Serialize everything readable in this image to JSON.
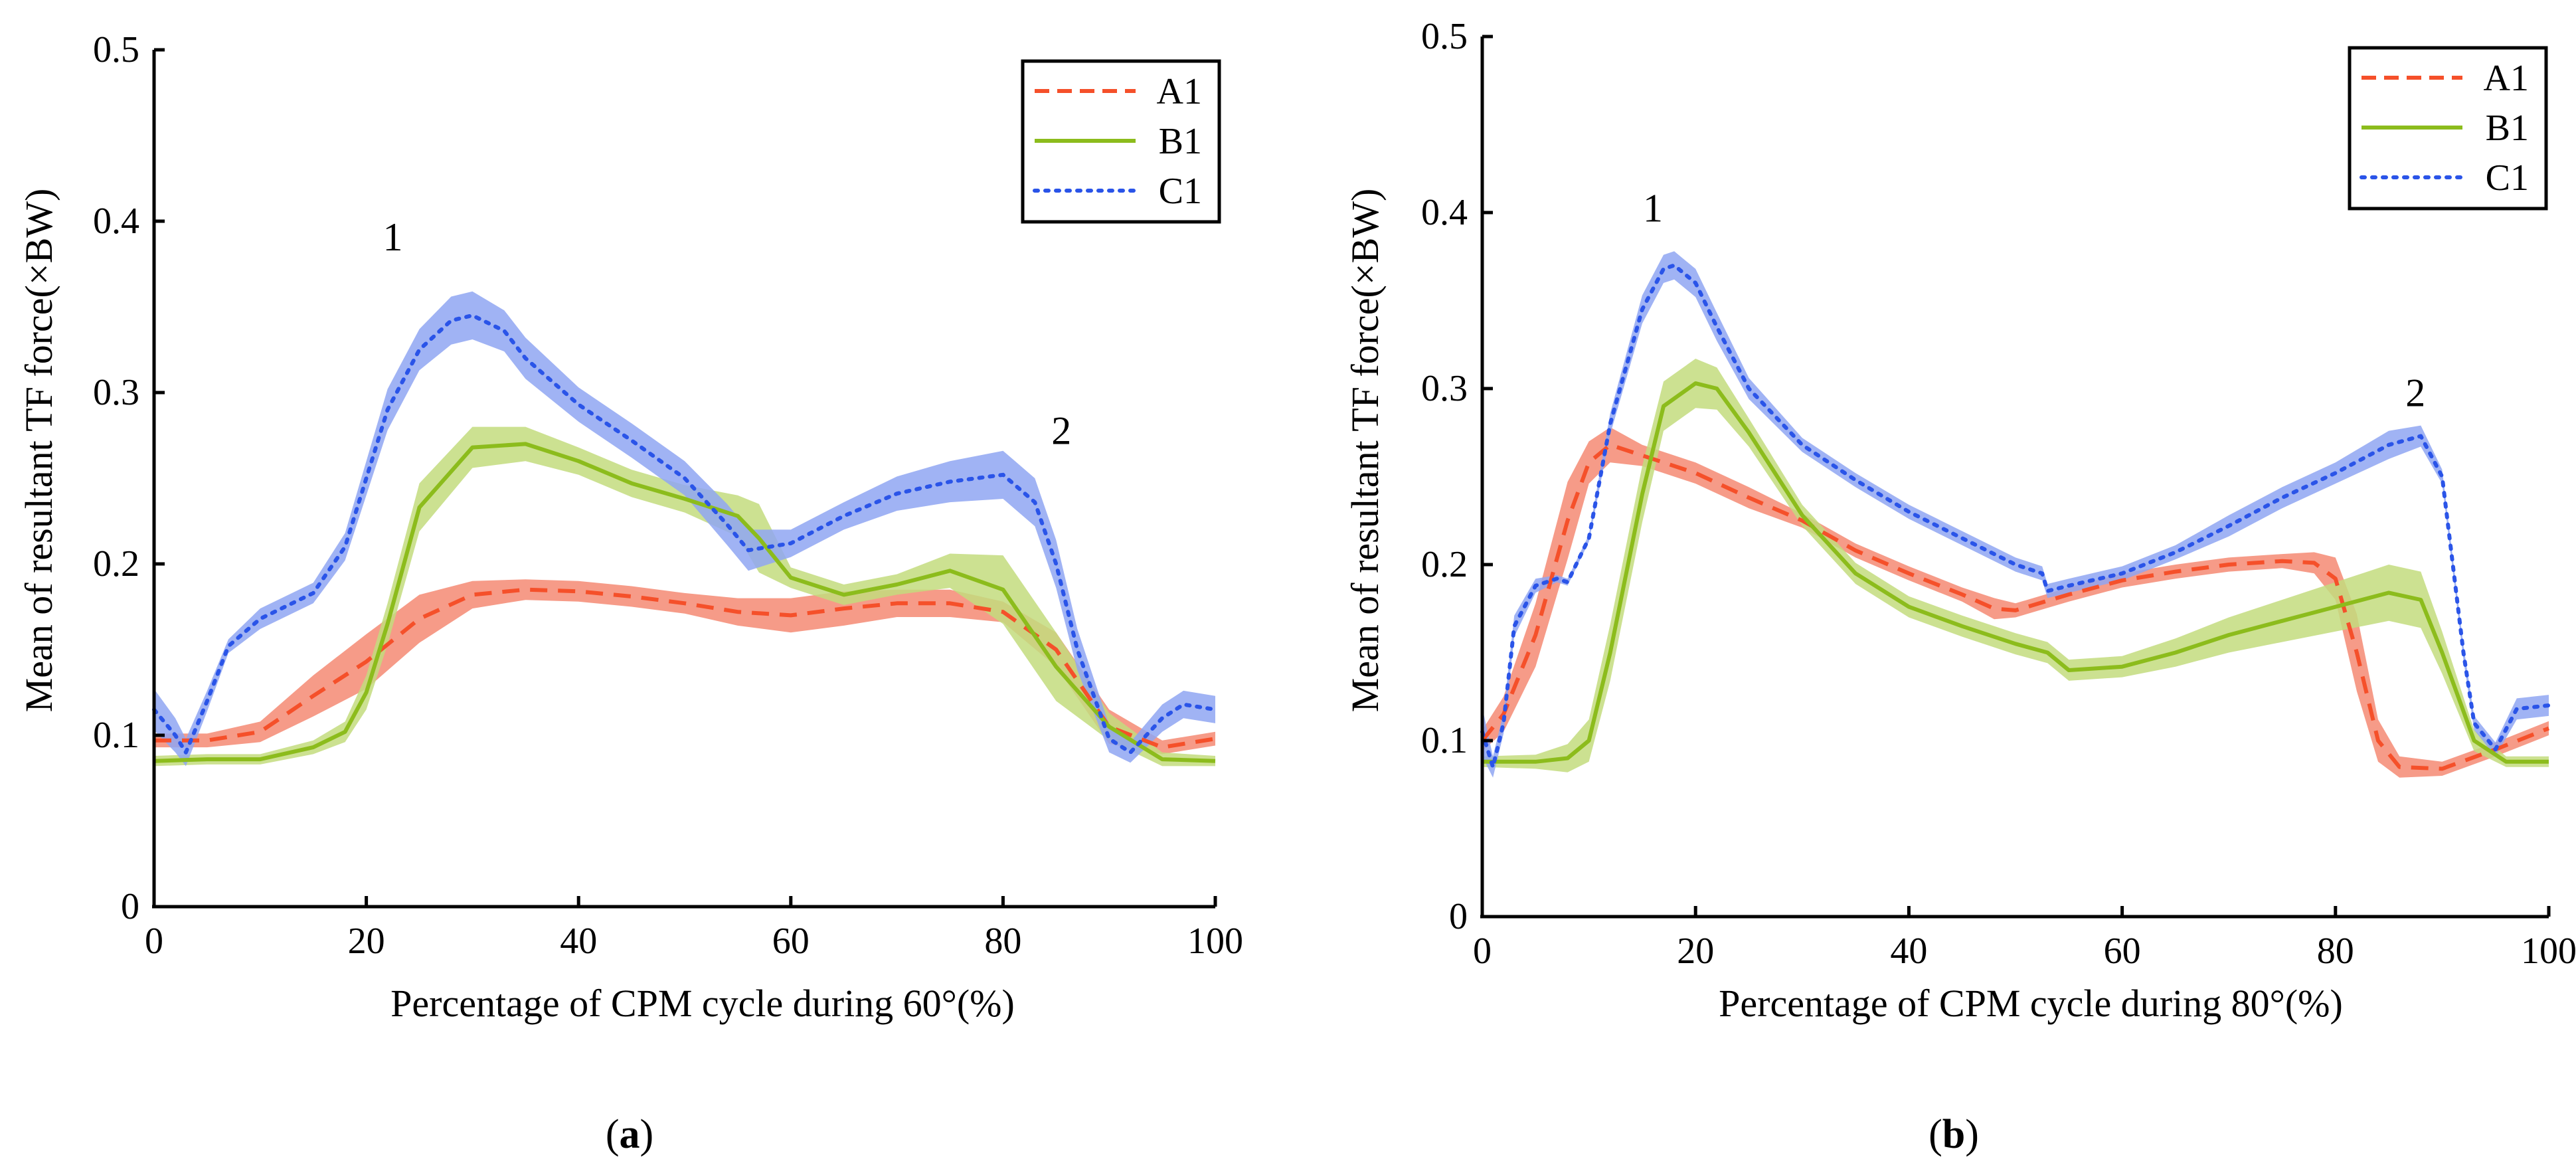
{
  "figure": {
    "panel_labels": [
      "(a)",
      "(b)"
    ],
    "panel_letters": [
      "a",
      "b"
    ]
  },
  "colors": {
    "A1": "#f5502a",
    "B1": "#8cbc1c",
    "C1": "#2a54e8",
    "A1_band": "#f58a73",
    "B1_band": "#c3dc7e",
    "C1_band": "#8fa6f2"
  },
  "chart_data": [
    {
      "type": "line",
      "panel": "(a)",
      "title": "",
      "xlabel": "Percentage of CPM cycle during 60°(%)",
      "ylabel": "Mean of resultant TF force(×BW)",
      "xlim": [
        0,
        100
      ],
      "ylim": [
        0,
        0.5
      ],
      "xticks": [
        0,
        20,
        40,
        60,
        80,
        100
      ],
      "yticks": [
        0,
        0.1,
        0.2,
        0.3,
        0.4,
        0.5
      ],
      "xtick_labels": [
        "0",
        "20",
        "40",
        "60",
        "80",
        "100"
      ],
      "ytick_labels": [
        "0",
        "0.1",
        "0.2",
        "0.3",
        "0.4",
        "0.5"
      ],
      "legend": {
        "position": "top-right",
        "entries": [
          "A1",
          "B1",
          "C1"
        ]
      },
      "annotations": [
        {
          "text": "1",
          "x": 22.5,
          "y": 0.383
        },
        {
          "text": "2",
          "x": 85.5,
          "y": 0.27
        }
      ],
      "series": [
        {
          "name": "A1",
          "style": "dashed",
          "x": [
            0,
            5,
            10,
            15,
            20,
            25,
            30,
            35,
            40,
            45,
            50,
            55,
            60,
            65,
            70,
            75,
            80,
            85,
            90,
            95,
            100
          ],
          "y": [
            0.097,
            0.097,
            0.102,
            0.123,
            0.143,
            0.168,
            0.182,
            0.185,
            0.184,
            0.181,
            0.177,
            0.172,
            0.17,
            0.174,
            0.177,
            0.177,
            0.172,
            0.15,
            0.105,
            0.093,
            0.098
          ],
          "band": [
            0.004,
            0.004,
            0.006,
            0.012,
            0.016,
            0.014,
            0.008,
            0.006,
            0.006,
            0.006,
            0.006,
            0.008,
            0.01,
            0.01,
            0.008,
            0.008,
            0.006,
            0.01,
            0.01,
            0.004,
            0.004
          ]
        },
        {
          "name": "B1",
          "style": "solid",
          "x": [
            0,
            5,
            10,
            15,
            18,
            20,
            22,
            25,
            30,
            35,
            40,
            45,
            50,
            55,
            57,
            60,
            65,
            70,
            75,
            80,
            85,
            90,
            95,
            100
          ],
          "y": [
            0.085,
            0.086,
            0.086,
            0.093,
            0.102,
            0.125,
            0.165,
            0.233,
            0.268,
            0.27,
            0.26,
            0.247,
            0.238,
            0.228,
            0.215,
            0.192,
            0.182,
            0.188,
            0.196,
            0.185,
            0.14,
            0.105,
            0.086,
            0.085
          ],
          "band": [
            0.003,
            0.003,
            0.003,
            0.004,
            0.006,
            0.01,
            0.012,
            0.014,
            0.012,
            0.01,
            0.008,
            0.008,
            0.008,
            0.012,
            0.02,
            0.006,
            0.006,
            0.006,
            0.01,
            0.02,
            0.02,
            0.008,
            0.004,
            0.003
          ]
        },
        {
          "name": "C1",
          "style": "dotted",
          "x": [
            0,
            2,
            3,
            5,
            7,
            10,
            15,
            18,
            20,
            22,
            25,
            28,
            30,
            33,
            35,
            40,
            45,
            50,
            54,
            56,
            60,
            65,
            70,
            75,
            80,
            83,
            85,
            87,
            90,
            92,
            95,
            97,
            100
          ],
          "y": [
            0.115,
            0.1,
            0.09,
            0.12,
            0.152,
            0.168,
            0.183,
            0.21,
            0.25,
            0.29,
            0.325,
            0.342,
            0.345,
            0.336,
            0.32,
            0.293,
            0.272,
            0.25,
            0.223,
            0.208,
            0.212,
            0.228,
            0.241,
            0.248,
            0.252,
            0.236,
            0.2,
            0.15,
            0.098,
            0.09,
            0.11,
            0.118,
            0.115
          ],
          "band": [
            0.012,
            0.01,
            0.008,
            0.006,
            0.004,
            0.006,
            0.006,
            0.008,
            0.01,
            0.012,
            0.012,
            0.014,
            0.014,
            0.012,
            0.012,
            0.01,
            0.01,
            0.01,
            0.012,
            0.012,
            0.008,
            0.008,
            0.01,
            0.012,
            0.014,
            0.014,
            0.014,
            0.012,
            0.008,
            0.006,
            0.008,
            0.008,
            0.008
          ]
        }
      ]
    },
    {
      "type": "line",
      "panel": "(b)",
      "title": "",
      "xlabel": "Percentage of CPM cycle during 80°(%)",
      "ylabel": "Mean of resultant TF force(×BW)",
      "xlim": [
        0,
        100
      ],
      "ylim": [
        0,
        0.5
      ],
      "xticks": [
        0,
        20,
        40,
        60,
        80,
        100
      ],
      "yticks": [
        0,
        0.1,
        0.2,
        0.3,
        0.4,
        0.5
      ],
      "xtick_labels": [
        "0",
        "20",
        "40",
        "60",
        "80",
        "100"
      ],
      "ytick_labels": [
        "0",
        "0.1",
        "0.2",
        "0.3",
        "0.4",
        "0.5"
      ],
      "legend": {
        "position": "top-right",
        "entries": [
          "A1",
          "B1",
          "C1"
        ]
      },
      "annotations": [
        {
          "text": "1",
          "x": 16,
          "y": 0.395
        },
        {
          "text": "2",
          "x": 87.5,
          "y": 0.29
        }
      ],
      "series": [
        {
          "name": "A1",
          "style": "dashed",
          "x": [
            0,
            2,
            5,
            8,
            10,
            12,
            15,
            20,
            25,
            30,
            35,
            40,
            45,
            48,
            50,
            55,
            60,
            65,
            70,
            75,
            78,
            80,
            82,
            84,
            86,
            90,
            95,
            100
          ],
          "y": [
            0.1,
            0.115,
            0.16,
            0.225,
            0.258,
            0.268,
            0.262,
            0.252,
            0.238,
            0.225,
            0.208,
            0.195,
            0.183,
            0.175,
            0.174,
            0.183,
            0.191,
            0.196,
            0.2,
            0.202,
            0.201,
            0.192,
            0.15,
            0.1,
            0.085,
            0.084,
            0.095,
            0.107
          ],
          "band": [
            0.006,
            0.01,
            0.018,
            0.022,
            0.012,
            0.01,
            0.006,
            0.006,
            0.006,
            0.004,
            0.004,
            0.004,
            0.004,
            0.006,
            0.004,
            0.004,
            0.004,
            0.004,
            0.004,
            0.004,
            0.006,
            0.012,
            0.022,
            0.012,
            0.006,
            0.004,
            0.004,
            0.004
          ]
        },
        {
          "name": "B1",
          "style": "solid",
          "x": [
            0,
            5,
            8,
            10,
            12,
            15,
            17,
            20,
            22,
            25,
            30,
            35,
            40,
            45,
            50,
            53,
            55,
            60,
            65,
            70,
            75,
            80,
            85,
            88,
            90,
            93,
            96,
            100
          ],
          "y": [
            0.088,
            0.088,
            0.09,
            0.1,
            0.15,
            0.24,
            0.29,
            0.303,
            0.3,
            0.275,
            0.228,
            0.195,
            0.176,
            0.165,
            0.155,
            0.15,
            0.14,
            0.142,
            0.15,
            0.16,
            0.168,
            0.176,
            0.184,
            0.18,
            0.15,
            0.1,
            0.088,
            0.088
          ],
          "band": [
            0.003,
            0.004,
            0.008,
            0.012,
            0.016,
            0.016,
            0.014,
            0.014,
            0.012,
            0.008,
            0.006,
            0.006,
            0.006,
            0.006,
            0.006,
            0.006,
            0.006,
            0.006,
            0.008,
            0.01,
            0.012,
            0.014,
            0.016,
            0.016,
            0.012,
            0.006,
            0.003,
            0.003
          ]
        },
        {
          "name": "C1",
          "style": "dotted",
          "x": [
            0,
            1,
            2,
            3,
            5,
            7,
            8,
            10,
            12,
            15,
            17,
            18,
            20,
            22,
            25,
            30,
            35,
            40,
            45,
            50,
            52.5,
            53,
            55,
            60,
            65,
            70,
            75,
            80,
            85,
            88,
            90,
            91,
            92,
            93,
            95,
            97,
            100
          ],
          "y": [
            0.105,
            0.085,
            0.11,
            0.165,
            0.188,
            0.192,
            0.19,
            0.215,
            0.28,
            0.345,
            0.368,
            0.37,
            0.36,
            0.335,
            0.3,
            0.268,
            0.248,
            0.23,
            0.215,
            0.2,
            0.195,
            0.185,
            0.188,
            0.195,
            0.207,
            0.222,
            0.238,
            0.252,
            0.268,
            0.273,
            0.25,
            0.2,
            0.15,
            0.11,
            0.095,
            0.118,
            0.12
          ],
          "band": [
            0.014,
            0.006,
            0.006,
            0.006,
            0.004,
            0.002,
            0.002,
            0.002,
            0.006,
            0.008,
            0.008,
            0.008,
            0.008,
            0.008,
            0.006,
            0.004,
            0.004,
            0.004,
            0.004,
            0.004,
            0.004,
            0.004,
            0.004,
            0.004,
            0.004,
            0.006,
            0.006,
            0.006,
            0.008,
            0.006,
            0.004,
            0.004,
            0.004,
            0.004,
            0.004,
            0.006,
            0.006
          ]
        }
      ]
    }
  ]
}
